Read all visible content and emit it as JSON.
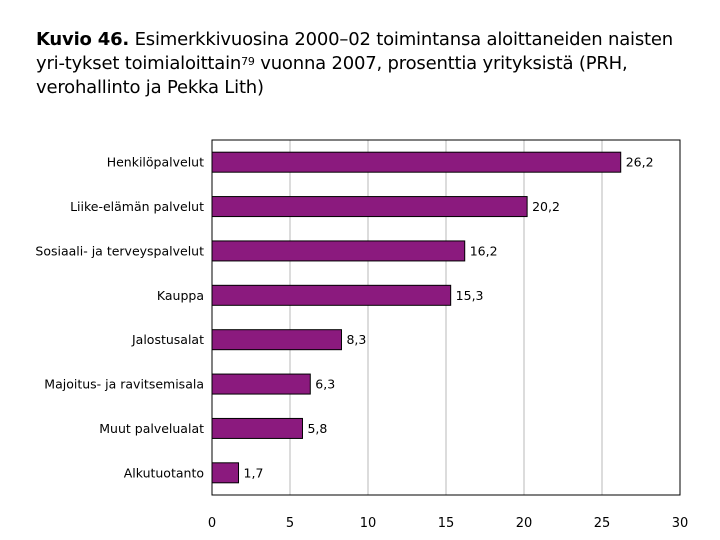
{
  "figure": {
    "title_bold": "Kuvio 46.",
    "title_pre_sup": " Esimerkkivuosina 2000–02 toimintansa aloittaneiden naisten yri-tykset toimialoittain",
    "title_sup": "79",
    "title_post_sup": " vuonna 2007, prosenttia yrityksistä (PRH, verohallinto ja Pekka Lith)"
  },
  "chart_data": {
    "type": "bar",
    "orientation": "horizontal",
    "categories": [
      "Henkilöpalvelut",
      "Liike-elämän palvelut",
      "Sosiaali- ja terveyspalvelut",
      "Kauppa",
      "Jalostusalat",
      "Majoitus- ja ravitsemisala",
      "Muut palvelualat",
      "Alkutuotanto"
    ],
    "values": [
      26.2,
      20.2,
      16.2,
      15.3,
      8.3,
      6.3,
      5.8,
      1.7
    ],
    "value_labels": [
      "26,2",
      "20,2",
      "16,2",
      "15,3",
      "8,3",
      "6,3",
      "5,8",
      "1,7"
    ],
    "xlim": [
      0,
      30
    ],
    "xticks": [
      0,
      5,
      10,
      15,
      20,
      25,
      30
    ],
    "grid": true,
    "bar_color": "#8b1a7e",
    "xlabel": "",
    "ylabel": ""
  }
}
